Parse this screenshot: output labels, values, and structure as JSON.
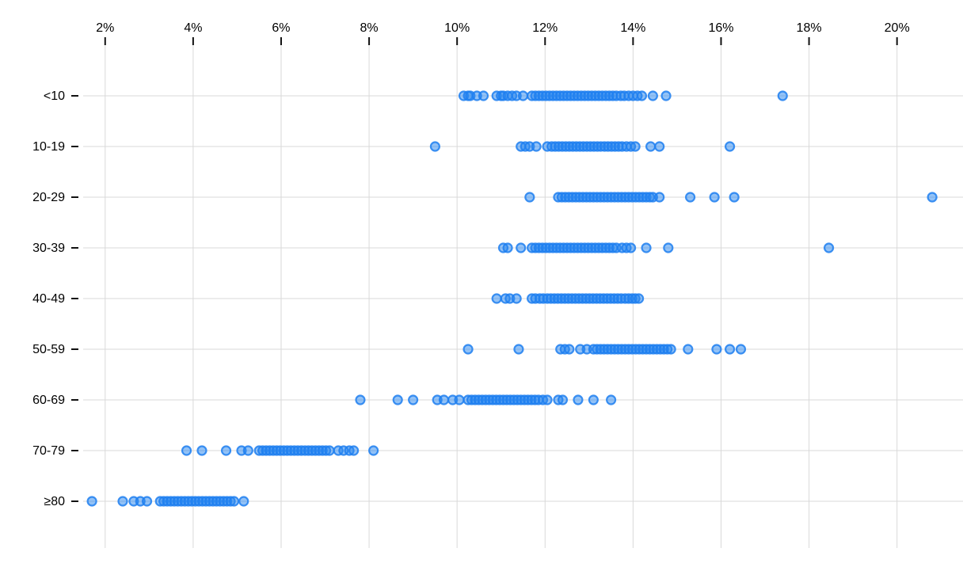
{
  "chart_data": {
    "type": "scatter",
    "subtype": "horizontal-strip-plot",
    "title": "",
    "xlabel": "",
    "ylabel": "",
    "x_unit": "%",
    "xlim": [
      1.5,
      21.5
    ],
    "x_ticks": [
      2,
      4,
      6,
      8,
      10,
      12,
      14,
      16,
      18,
      20
    ],
    "x_tick_labels": [
      "2%",
      "4%",
      "6%",
      "8%",
      "10%",
      "12%",
      "14%",
      "16%",
      "18%",
      "20%"
    ],
    "grid": "both",
    "legend": "none",
    "categories": [
      "<10",
      "10-19",
      "20-29",
      "30-39",
      "40-49",
      "50-59",
      "60-69",
      "70-79",
      "≥80"
    ],
    "series": [
      {
        "name": "<10",
        "values": [
          10.15,
          10.25,
          10.3,
          10.45,
          10.6,
          10.9,
          11.0,
          11.05,
          11.15,
          11.25,
          11.35,
          11.5,
          11.7,
          11.78,
          11.86,
          11.94,
          12.02,
          12.1,
          12.18,
          12.26,
          12.34,
          12.42,
          12.5,
          12.58,
          12.66,
          12.74,
          12.82,
          12.9,
          12.98,
          13.06,
          13.14,
          13.22,
          13.3,
          13.38,
          13.46,
          13.54,
          13.62,
          13.72,
          13.8,
          13.9,
          14.0,
          14.1,
          14.2,
          14.45,
          14.75,
          17.4
        ]
      },
      {
        "name": "10-19",
        "values": [
          9.5,
          11.45,
          11.55,
          11.65,
          11.8,
          12.05,
          12.15,
          12.23,
          12.31,
          12.39,
          12.47,
          12.55,
          12.63,
          12.71,
          12.79,
          12.87,
          12.95,
          13.03,
          13.11,
          13.19,
          13.27,
          13.35,
          13.43,
          13.51,
          13.59,
          13.67,
          13.75,
          13.85,
          13.95,
          14.05,
          14.4,
          14.6,
          16.2
        ]
      },
      {
        "name": "20-29",
        "values": [
          11.65,
          12.3,
          12.38,
          12.46,
          12.54,
          12.62,
          12.7,
          12.78,
          12.86,
          12.94,
          13.02,
          13.1,
          13.18,
          13.26,
          13.34,
          13.42,
          13.5,
          13.58,
          13.66,
          13.74,
          13.82,
          13.9,
          13.98,
          14.06,
          14.14,
          14.22,
          14.3,
          14.38,
          14.45,
          14.6,
          15.3,
          15.85,
          16.3,
          20.8
        ]
      },
      {
        "name": "30-39",
        "values": [
          11.05,
          11.15,
          11.45,
          11.7,
          11.78,
          11.86,
          11.94,
          12.02,
          12.1,
          12.18,
          12.26,
          12.34,
          12.42,
          12.5,
          12.58,
          12.66,
          12.74,
          12.82,
          12.9,
          12.98,
          13.06,
          13.14,
          13.22,
          13.3,
          13.38,
          13.46,
          13.54,
          13.62,
          13.75,
          13.85,
          13.95,
          14.3,
          14.8,
          18.45
        ]
      },
      {
        "name": "40-49",
        "values": [
          10.9,
          11.1,
          11.2,
          11.35,
          11.7,
          11.78,
          11.88,
          11.96,
          12.05,
          12.13,
          12.21,
          12.29,
          12.37,
          12.45,
          12.53,
          12.61,
          12.69,
          12.77,
          12.85,
          12.93,
          13.01,
          13.09,
          13.17,
          13.25,
          13.33,
          13.41,
          13.49,
          13.57,
          13.65,
          13.73,
          13.82,
          13.9,
          13.98,
          14.05,
          14.13
        ]
      },
      {
        "name": "50-59",
        "values": [
          10.25,
          11.4,
          12.35,
          12.45,
          12.55,
          12.8,
          12.95,
          13.1,
          13.18,
          13.26,
          13.34,
          13.42,
          13.5,
          13.58,
          13.66,
          13.74,
          13.82,
          13.9,
          13.98,
          14.06,
          14.14,
          14.22,
          14.3,
          14.38,
          14.46,
          14.54,
          14.62,
          14.7,
          14.78,
          14.86,
          15.25,
          15.9,
          16.2,
          16.45
        ]
      },
      {
        "name": "60-69",
        "values": [
          7.8,
          8.65,
          9.0,
          9.55,
          9.7,
          9.9,
          10.05,
          10.25,
          10.33,
          10.41,
          10.49,
          10.57,
          10.65,
          10.73,
          10.81,
          10.89,
          10.97,
          11.05,
          11.13,
          11.21,
          11.29,
          11.37,
          11.45,
          11.53,
          11.61,
          11.69,
          11.77,
          11.85,
          11.95,
          12.05,
          12.3,
          12.4,
          12.75,
          13.1,
          13.5
        ]
      },
      {
        "name": "70-79",
        "values": [
          3.85,
          4.2,
          4.75,
          5.1,
          5.25,
          5.5,
          5.58,
          5.66,
          5.74,
          5.82,
          5.9,
          5.98,
          6.06,
          6.14,
          6.22,
          6.3,
          6.38,
          6.46,
          6.54,
          6.62,
          6.7,
          6.78,
          6.86,
          6.94,
          7.02,
          7.1,
          7.3,
          7.42,
          7.55,
          7.65,
          8.1
        ]
      },
      {
        "name": "≥80",
        "values": [
          1.7,
          2.4,
          2.65,
          2.8,
          2.95,
          3.25,
          3.33,
          3.41,
          3.49,
          3.57,
          3.65,
          3.73,
          3.81,
          3.89,
          3.97,
          4.05,
          4.13,
          4.21,
          4.29,
          4.37,
          4.45,
          4.53,
          4.61,
          4.69,
          4.77,
          4.85,
          4.93,
          5.15
        ]
      }
    ],
    "colors": {
      "dot_fill": "#2585f0",
      "dot_stroke": "#1f7ff0",
      "gridline": "#d9d9d9",
      "tick": "#111111",
      "text": "#000000",
      "background": "#ffffff"
    }
  }
}
